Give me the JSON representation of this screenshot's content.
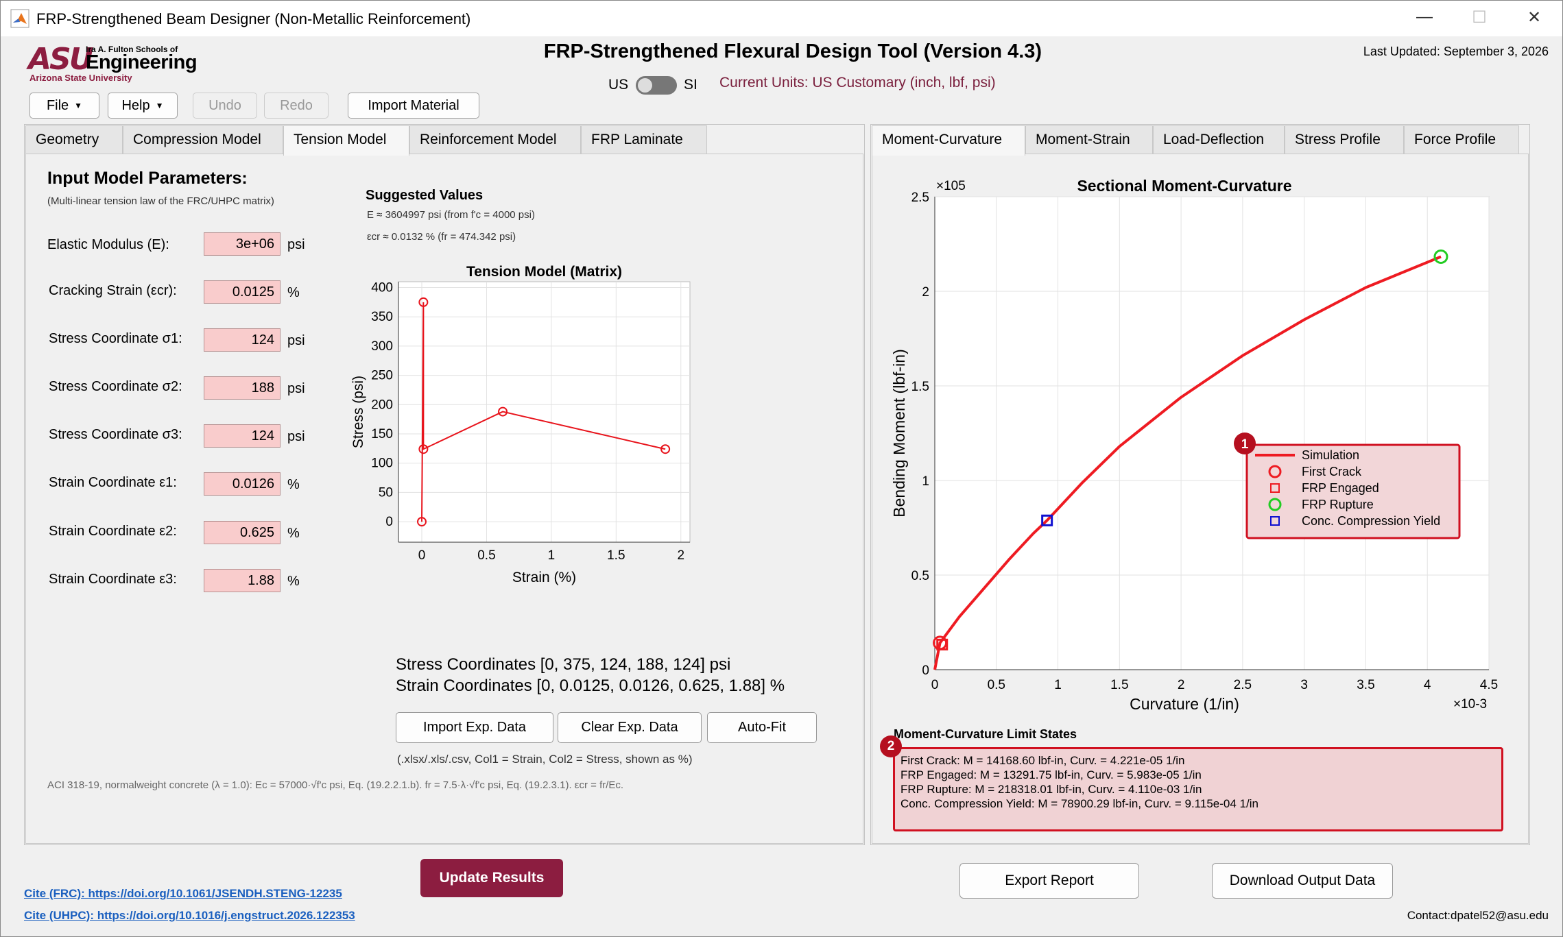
{
  "window": {
    "title": "FRP-Strengthened Beam Designer (Non-Metallic Reinforcement)"
  },
  "header": {
    "logo_asu": "ASU",
    "logo_fulton": "Ira A. Fulton Schools of",
    "logo_engineering": "Engineering",
    "logo_university": "Arizona State University",
    "title": "FRP-Strengthened Flexural Design Tool (Version 4.3)",
    "last_updated": "Last Updated: September 3, 2026",
    "units_us": "US",
    "units_si": "SI",
    "current_units": "Current Units: US Customary (inch, lbf, psi)"
  },
  "toolbar": {
    "file": "File",
    "help": "Help",
    "undo": "Undo",
    "redo": "Redo",
    "import_material": "Import Material"
  },
  "left_tabs": [
    "Geometry",
    "Compression Model",
    "Tension Model",
    "Reinforcement Model",
    "FRP Laminate"
  ],
  "right_tabs": [
    "Moment-Curvature",
    "Moment-Strain",
    "Load-Deflection",
    "Stress Profile",
    "Force Profile"
  ],
  "tension": {
    "heading": "Input Model Parameters:",
    "subheading": "(Multi-linear tension law of the FRC/UHPC matrix)",
    "suggested_title": "Suggested Values",
    "suggested_E": "E ≈ 3604997 psi  (from f'c = 4000 psi)",
    "suggested_ecr": "εcr ≈ 0.0132 %  (fr = 474.342 psi)",
    "params": [
      {
        "label": "Elastic Modulus (E):",
        "value": "3e+06",
        "unit": "psi"
      },
      {
        "label": "Cracking Strain (εcr):",
        "value": "0.0125",
        "unit": "%"
      },
      {
        "label": "Stress Coordinate σ1:",
        "value": "124",
        "unit": "psi"
      },
      {
        "label": "Stress Coordinate σ2:",
        "value": "188",
        "unit": "psi"
      },
      {
        "label": "Stress Coordinate σ3:",
        "value": "124",
        "unit": "psi"
      },
      {
        "label": "Strain Coordinate ε1:",
        "value": "0.0126",
        "unit": "%"
      },
      {
        "label": "Strain Coordinate ε2:",
        "value": "0.625",
        "unit": "%"
      },
      {
        "label": "Strain Coordinate ε3:",
        "value": "1.88",
        "unit": "%"
      }
    ],
    "stress_coords": "Stress Coordinates [0, 375, 124, 188, 124] psi",
    "strain_coords": "Strain Coordinates [0, 0.0125, 0.0126, 0.625, 1.88] %",
    "import_btn": "Import Exp. Data",
    "clear_btn": "Clear Exp. Data",
    "autofit_btn": "Auto-Fit",
    "file_hint": "(.xlsx/.xls/.csv, Col1 = Strain, Col2 = Stress, shown as %)",
    "aci_note": "ACI 318-19, normalweight concrete (λ = 1.0): Ec = 57000·√f'c psi, Eq. (19.2.2.1.b). fr = 7.5·λ·√f'c psi, Eq. (19.2.3.1). εcr = fr/Ec."
  },
  "chart_data": [
    {
      "type": "line",
      "title": "Tension Model (Matrix)",
      "xlabel": "Strain (%)",
      "ylabel": "Stress (psi)",
      "xlim": [
        -0.18,
        2.07
      ],
      "ylim": [
        -35,
        410
      ],
      "xticks": [
        0,
        0.5,
        1,
        1.5,
        2
      ],
      "yticks": [
        0,
        50,
        100,
        150,
        200,
        250,
        300,
        350,
        400
      ],
      "grid": true,
      "series": [
        {
          "x": [
            0,
            0.0125,
            0.0126,
            0.625,
            1.88
          ],
          "y": [
            0,
            375,
            124,
            188,
            124
          ],
          "color": "#e8141c",
          "marker": "circle"
        }
      ]
    },
    {
      "type": "line",
      "title": "Sectional Moment-Curvature",
      "xlabel": "Curvature (1/in)",
      "ylabel": "Bending Moment (lbf-in)",
      "x_multiplier": "×10-3",
      "y_multiplier": "×105",
      "xlim": [
        0,
        4.5
      ],
      "ylim": [
        0,
        2.5
      ],
      "xticks": [
        0,
        0.5,
        1,
        1.5,
        2,
        2.5,
        3,
        3.5,
        4,
        4.5
      ],
      "yticks": [
        0,
        0.5,
        1,
        1.5,
        2,
        2.5
      ],
      "grid": true,
      "legend_position": "middle-right",
      "series": [
        {
          "name": "Simulation",
          "x": [
            0,
            0.04221,
            0.2,
            0.4,
            0.6,
            0.8,
            0.9115,
            1.2,
            1.5,
            2.0,
            2.5,
            3.0,
            3.5,
            4.11
          ],
          "y": [
            0,
            0.141686,
            0.28,
            0.43,
            0.58,
            0.72,
            0.789,
            0.99,
            1.18,
            1.44,
            1.66,
            1.85,
            2.02,
            2.183
          ],
          "color": "#ee1b22"
        },
        {
          "name": "First Crack",
          "x": [
            0.04221
          ],
          "y": [
            0.141686
          ],
          "color": "#ee1b22",
          "marker": "circle"
        },
        {
          "name": "FRP Engaged",
          "x": [
            0.05983
          ],
          "y": [
            0.1329175
          ],
          "color": "#ee1b22",
          "marker": "square"
        },
        {
          "name": "FRP Rupture",
          "x": [
            4.11
          ],
          "y": [
            2.183181
          ],
          "color": "#22cc22",
          "marker": "circle"
        },
        {
          "name": "Conc. Compression Yield",
          "x": [
            0.9115
          ],
          "y": [
            0.7890029
          ],
          "color": "#1010d0",
          "marker": "square"
        }
      ]
    }
  ],
  "limits": {
    "title": "Moment-Curvature Limit States",
    "lines": [
      "First Crack: M = 14168.60 lbf-in, Curv. = 4.221e-05 1/in",
      "FRP Engaged: M = 13291.75 lbf-in, Curv. = 5.983e-05 1/in",
      "FRP Rupture: M = 218318.01 lbf-in, Curv. = 4.110e-03 1/in",
      "Conc. Compression Yield: M = 78900.29 lbf-in, Curv. = 9.115e-04 1/in"
    ],
    "badge1": "1",
    "badge2": "2"
  },
  "footer": {
    "update": "Update Results",
    "export": "Export Report",
    "download": "Download Output Data",
    "cite_frc": "Cite (FRC): https://doi.org/10.1061/JSENDH.STENG-12235",
    "cite_uhpc": "Cite (UHPC): https://doi.org/10.1016/j.engstruct.2026.122353",
    "contact": "Contact:dpatel52@asu.edu"
  }
}
